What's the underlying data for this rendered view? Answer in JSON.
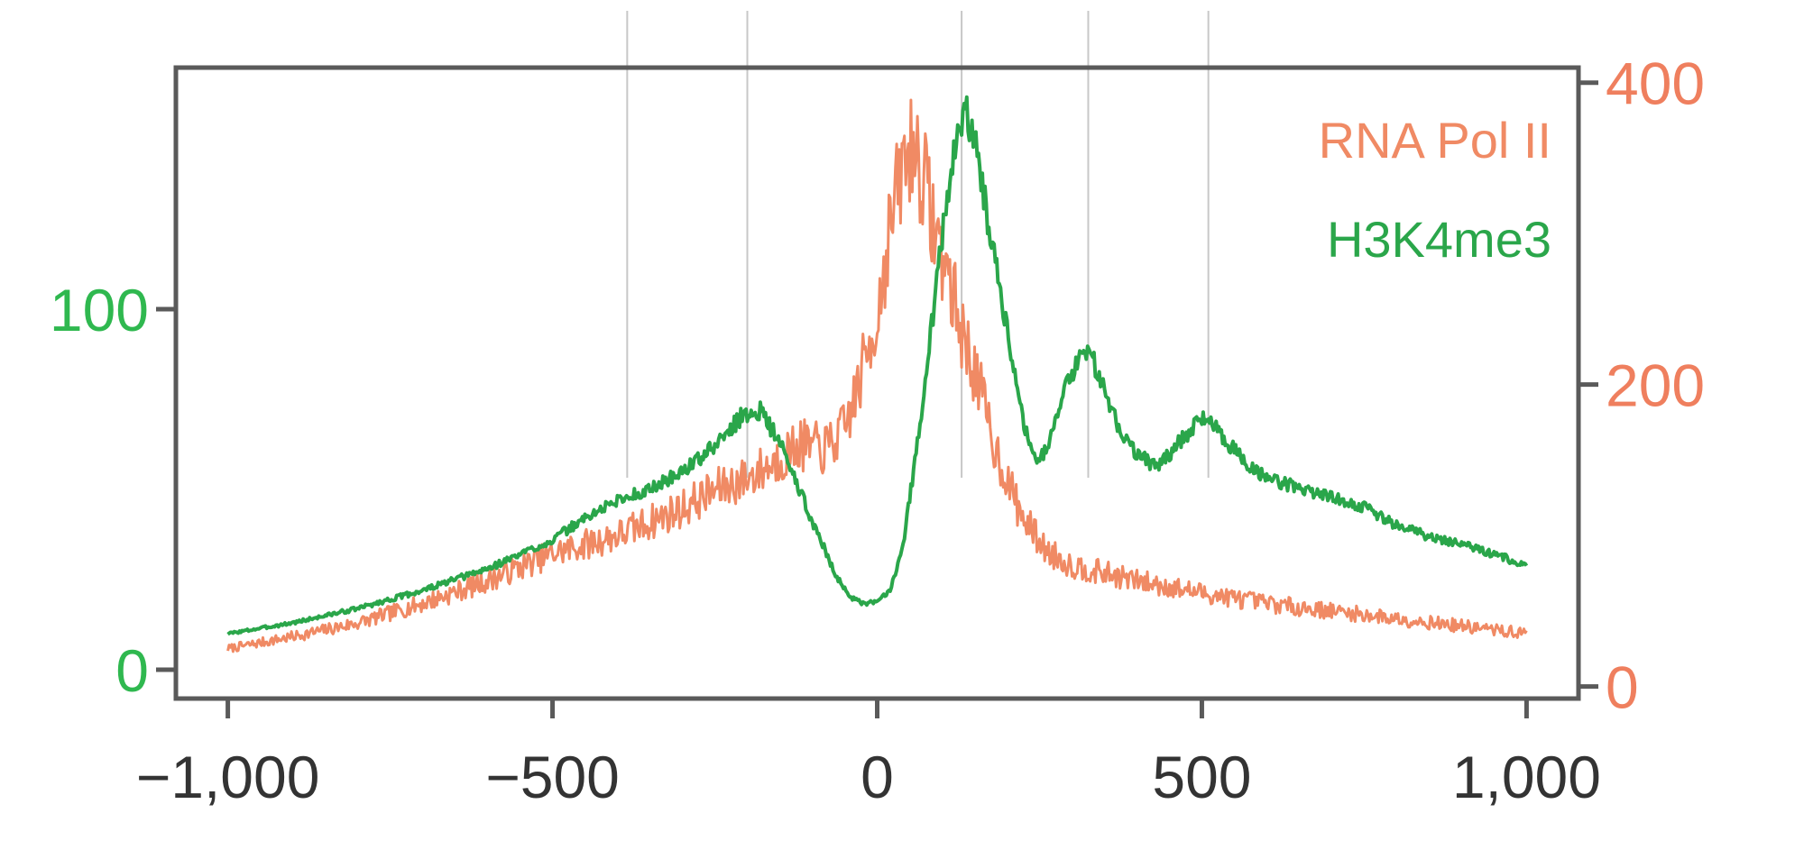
{
  "chart_data": {
    "type": "line",
    "title": "",
    "xlabel": "",
    "ylabel": "",
    "xlim": [
      -1080,
      1080
    ],
    "x_ticks": [
      -1000,
      -500,
      0,
      500,
      1000
    ],
    "x_tick_labels": [
      "−1,000",
      "−500",
      "0",
      "500",
      "1,000"
    ],
    "y_left": {
      "lim": [
        -8,
        167
      ],
      "ticks": [
        0,
        100
      ],
      "tick_labels": [
        "0",
        "100"
      ],
      "color": "#2fb84f"
    },
    "y_right": {
      "lim": [
        -8,
        410
      ],
      "ticks": [
        0,
        200,
        400
      ],
      "tick_labels": [
        "0",
        "200",
        "400"
      ],
      "color": "#ef7f5e"
    },
    "vertical_guides_x": [
      -385,
      -200,
      130,
      325,
      510
    ],
    "legend": {
      "position": "top-right"
    },
    "grid": false,
    "series": [
      {
        "name": "RNA Pol II",
        "axis": "right",
        "color": "#f08a64",
        "points": [
          [
            -1000,
            25
          ],
          [
            -900,
            33
          ],
          [
            -800,
            42
          ],
          [
            -700,
            55
          ],
          [
            -600,
            70
          ],
          [
            -500,
            88
          ],
          [
            -400,
            100
          ],
          [
            -300,
            118
          ],
          [
            -250,
            130
          ],
          [
            -200,
            138
          ],
          [
            -160,
            148
          ],
          [
            -120,
            160
          ],
          [
            -80,
            157
          ],
          [
            -50,
            170
          ],
          [
            -30,
            198
          ],
          [
            0,
            245
          ],
          [
            20,
            305
          ],
          [
            40,
            345
          ],
          [
            55,
            360
          ],
          [
            70,
            340
          ],
          [
            90,
            300
          ],
          [
            110,
            272
          ],
          [
            130,
            235
          ],
          [
            150,
            210
          ],
          [
            180,
            160
          ],
          [
            220,
            115
          ],
          [
            260,
            90
          ],
          [
            300,
            80
          ],
          [
            350,
            75
          ],
          [
            400,
            70
          ],
          [
            500,
            62
          ],
          [
            600,
            55
          ],
          [
            700,
            50
          ],
          [
            800,
            45
          ],
          [
            900,
            40
          ],
          [
            1000,
            35
          ]
        ]
      },
      {
        "name": "H3K4me3",
        "axis": "left",
        "color": "#2aa64a",
        "points": [
          [
            -1000,
            10
          ],
          [
            -900,
            13
          ],
          [
            -800,
            17
          ],
          [
            -700,
            22
          ],
          [
            -600,
            28
          ],
          [
            -500,
            36
          ],
          [
            -450,
            42
          ],
          [
            -400,
            47
          ],
          [
            -350,
            50
          ],
          [
            -300,
            55
          ],
          [
            -250,
            62
          ],
          [
            -210,
            70
          ],
          [
            -180,
            72
          ],
          [
            -150,
            63
          ],
          [
            -120,
            50
          ],
          [
            -90,
            37
          ],
          [
            -60,
            25
          ],
          [
            -40,
            20
          ],
          [
            -20,
            18
          ],
          [
            0,
            19
          ],
          [
            20,
            22
          ],
          [
            40,
            35
          ],
          [
            60,
            60
          ],
          [
            80,
            90
          ],
          [
            100,
            120
          ],
          [
            120,
            145
          ],
          [
            135,
            155
          ],
          [
            150,
            148
          ],
          [
            170,
            125
          ],
          [
            190,
            105
          ],
          [
            210,
            85
          ],
          [
            230,
            65
          ],
          [
            250,
            58
          ],
          [
            270,
            66
          ],
          [
            290,
            78
          ],
          [
            310,
            86
          ],
          [
            325,
            90
          ],
          [
            340,
            82
          ],
          [
            370,
            68
          ],
          [
            400,
            60
          ],
          [
            430,
            56
          ],
          [
            460,
            62
          ],
          [
            490,
            68
          ],
          [
            510,
            70
          ],
          [
            540,
            63
          ],
          [
            580,
            55
          ],
          [
            620,
            52
          ],
          [
            660,
            50
          ],
          [
            700,
            48
          ],
          [
            750,
            45
          ],
          [
            800,
            40
          ],
          [
            850,
            37
          ],
          [
            900,
            35
          ],
          [
            950,
            32
          ],
          [
            1000,
            29
          ]
        ]
      }
    ]
  }
}
